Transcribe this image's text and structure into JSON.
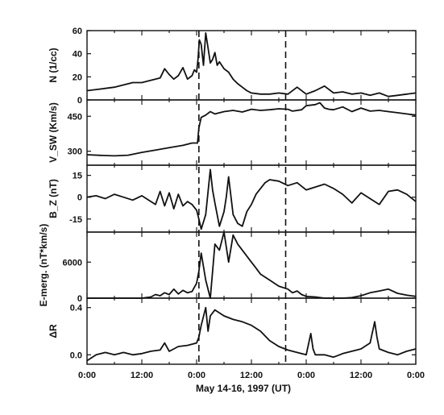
{
  "chart_data": {
    "type": "line",
    "xlabel": "May 14-16, 1997 (UT)",
    "x_ticks": [
      "0:00",
      "12:00",
      "0:00",
      "12:00",
      "0:00",
      "12:00",
      "0:00"
    ],
    "x_range_hours": [
      0,
      72
    ],
    "event_markers_hours": [
      24.5,
      43.5
    ],
    "panels": [
      {
        "ylabel": "N (1/cc)",
        "ylim": [
          0,
          60
        ],
        "yticks": [
          "0",
          "20",
          "40",
          "60"
        ],
        "ytick_values": [
          0,
          20,
          40,
          60
        ],
        "x": [
          0,
          2,
          4,
          6,
          8,
          10,
          12,
          14,
          16,
          17,
          18,
          19,
          20,
          21,
          22,
          23,
          23.5,
          24,
          24.3,
          24.6,
          25,
          25.5,
          26,
          26.5,
          27,
          27.5,
          28,
          28.5,
          29,
          30,
          31,
          32,
          33,
          34,
          35,
          36,
          38,
          40,
          42,
          44,
          46,
          48,
          50,
          52,
          54,
          56,
          58,
          60,
          62,
          64,
          66,
          68,
          70,
          72
        ],
        "values": [
          8,
          9,
          10,
          11,
          13,
          15,
          15,
          17,
          19,
          27,
          22,
          18,
          21,
          28,
          18,
          21,
          26,
          24,
          35,
          52,
          48,
          30,
          58,
          45,
          32,
          35,
          41,
          30,
          33,
          27,
          24,
          18,
          14,
          11,
          8,
          6,
          5,
          5,
          6,
          5,
          11,
          5,
          8,
          12,
          6,
          7,
          5,
          6,
          4,
          6,
          3,
          4,
          5,
          6
        ]
      },
      {
        "ylabel": "V_SW (Km/s)",
        "ylim": [
          240,
          520
        ],
        "yticks": [
          "300",
          "450"
        ],
        "ytick_values": [
          300,
          450
        ],
        "x": [
          0,
          3,
          6,
          9,
          12,
          15,
          18,
          21,
          23,
          24.2,
          24.5,
          25,
          26,
          27,
          28,
          30,
          32,
          34,
          36,
          38,
          40,
          42,
          44,
          45,
          47,
          48,
          50,
          51,
          52,
          53,
          54,
          56,
          58,
          60,
          62,
          64,
          66,
          68,
          70,
          72
        ],
        "values": [
          285,
          282,
          280,
          283,
          295,
          305,
          315,
          325,
          335,
          335,
          400,
          445,
          455,
          470,
          460,
          470,
          475,
          468,
          480,
          475,
          478,
          482,
          480,
          472,
          478,
          495,
          500,
          508,
          485,
          480,
          478,
          490,
          470,
          485,
          472,
          475,
          470,
          465,
          460,
          455
        ]
      },
      {
        "ylabel": "B_Z (nT)",
        "ylim": [
          -24,
          22
        ],
        "yticks": [
          "15",
          "0",
          "-15"
        ],
        "ytick_values": [
          15,
          0,
          -15
        ],
        "x": [
          0,
          2,
          4,
          6,
          8,
          10,
          12,
          14,
          15,
          16,
          17,
          18,
          19,
          20,
          21,
          22,
          23,
          24,
          24.5,
          25,
          26,
          27,
          27.5,
          28,
          29,
          30,
          30.5,
          31,
          32,
          33,
          34,
          35,
          36,
          37,
          38,
          39,
          40,
          42,
          44,
          46,
          48,
          50,
          52,
          54,
          56,
          58,
          60,
          62,
          64,
          66,
          68,
          70,
          72
        ],
        "values": [
          0,
          1,
          -1,
          2,
          0,
          -2,
          1,
          -3,
          -5,
          4,
          -6,
          3,
          -8,
          2,
          -6,
          -3,
          -5,
          -9,
          -15,
          -22,
          -12,
          19,
          5,
          -4,
          -20,
          -10,
          0,
          14,
          -12,
          -18,
          -20,
          -10,
          -5,
          2,
          6,
          10,
          12,
          11,
          8,
          10,
          5,
          7,
          9,
          6,
          2,
          -4,
          3,
          -1,
          -5,
          4,
          5,
          2,
          -3
        ]
      },
      {
        "ylabel": "E-merg. (nT*km/s)",
        "ylim": [
          0,
          11000
        ],
        "yticks": [
          "6000",
          "0"
        ],
        "ytick_values": [
          6000,
          0
        ],
        "x": [
          0,
          4,
          8,
          10,
          12,
          14,
          15,
          16,
          17,
          18,
          19,
          20,
          21,
          22,
          23,
          24,
          24.5,
          25,
          26,
          27,
          28,
          29,
          30,
          31,
          32,
          33,
          34,
          35,
          36,
          37,
          38,
          40,
          42,
          44,
          45,
          46,
          47,
          48,
          50,
          52,
          54,
          56,
          58,
          60,
          62,
          64,
          66,
          68,
          70,
          72
        ],
        "values": [
          0,
          0,
          0,
          0,
          0,
          200,
          600,
          400,
          900,
          600,
          1500,
          700,
          1300,
          900,
          1100,
          2500,
          4500,
          7500,
          3000,
          0,
          9000,
          8000,
          11000,
          6000,
          10500,
          9000,
          8000,
          7000,
          6000,
          5000,
          4000,
          3000,
          2000,
          1500,
          900,
          1200,
          600,
          300,
          200,
          0,
          0,
          0,
          100,
          400,
          900,
          1200,
          1500,
          800,
          500,
          300
        ]
      },
      {
        "ylabel": "ΔR",
        "ylim": [
          -0.08,
          0.48
        ],
        "yticks": [
          "0.4",
          "0.0"
        ],
        "ytick_values": [
          0.4,
          0.0
        ],
        "x": [
          0,
          2,
          4,
          6,
          8,
          10,
          12,
          14,
          16,
          17,
          18,
          19,
          20,
          22,
          24,
          24.5,
          25,
          26,
          26.5,
          27,
          28,
          30,
          32,
          34,
          36,
          38,
          40,
          42,
          44,
          46,
          48,
          49,
          49.5,
          50,
          52,
          54,
          56,
          58,
          60,
          62,
          63,
          63.5,
          64,
          66,
          68,
          70,
          72
        ],
        "values": [
          -0.05,
          0.0,
          0.02,
          0.0,
          0.02,
          0.0,
          0.01,
          0.03,
          0.04,
          0.1,
          0.03,
          0.05,
          0.07,
          0.08,
          0.1,
          0.15,
          0.25,
          0.4,
          0.2,
          0.33,
          0.38,
          0.33,
          0.3,
          0.28,
          0.25,
          0.2,
          0.12,
          0.07,
          0.04,
          0.02,
          0.0,
          0.18,
          0.05,
          0.0,
          0.0,
          -0.02,
          0.01,
          0.03,
          0.05,
          0.1,
          0.28,
          0.15,
          0.05,
          0.02,
          0.0,
          0.03,
          0.05
        ]
      }
    ]
  }
}
